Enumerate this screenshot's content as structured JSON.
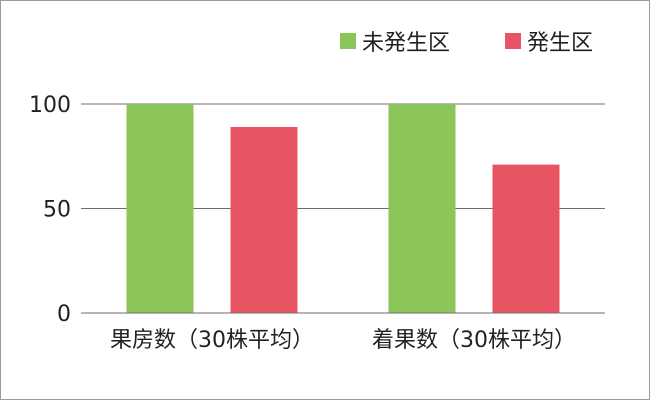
{
  "chart_data": {
    "type": "bar",
    "categories": [
      "果房数（30株平均）",
      "着果数（30株平均）"
    ],
    "series": [
      {
        "name": "未発生区",
        "color": "#8cc65a",
        "values": [
          100,
          100
        ]
      },
      {
        "name": "発生区",
        "color": "#e85462",
        "values": [
          89,
          71
        ]
      }
    ],
    "ylim": [
      0,
      100
    ],
    "yticks": [
      0,
      50,
      100
    ],
    "grid": true,
    "legend_position": "top-right"
  }
}
